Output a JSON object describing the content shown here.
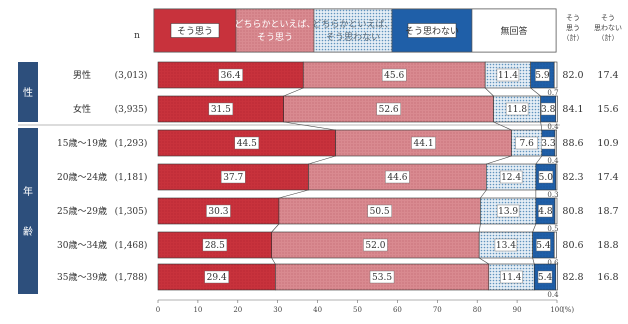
{
  "chart_data": {
    "type": "bar",
    "orientation": "horizontal",
    "stacked": true,
    "n_header": "n",
    "legend": [
      "そう思う",
      "どちらかといえば、そう思う",
      "どちらかといえば、そう思わない",
      "そう思わない",
      "無回答"
    ],
    "summary_headers": [
      "そう思う（計）",
      "そう思わない（計）"
    ],
    "groups": [
      {
        "label": "性",
        "rows": [
          0,
          1
        ]
      },
      {
        "label": "年齢",
        "rows": [
          2,
          3,
          4,
          5,
          6
        ]
      }
    ],
    "categories": [
      "男性",
      "女性",
      "15歳～19歳",
      "20歳～24歳",
      "25歳～29歳",
      "30歳～34歳",
      "35歳～39歳"
    ],
    "n_values": [
      "(3,013)",
      "(3,935)",
      "(1,293)",
      "(1,181)",
      "(1,305)",
      "(1,468)",
      "(1,788)"
    ],
    "series": [
      {
        "name": "そう思う",
        "values": [
          36.4,
          31.5,
          44.5,
          37.7,
          30.3,
          28.5,
          29.4
        ]
      },
      {
        "name": "どちらかといえば、そう思う",
        "values": [
          45.6,
          52.6,
          44.1,
          44.6,
          50.5,
          52.0,
          53.5
        ]
      },
      {
        "name": "どちらかといえば、そう思わない",
        "values": [
          11.4,
          11.8,
          7.6,
          12.4,
          13.9,
          13.4,
          11.4
        ]
      },
      {
        "name": "そう思わない",
        "values": [
          5.9,
          3.8,
          3.3,
          5.0,
          4.8,
          5.4,
          5.4
        ]
      },
      {
        "name": "無回答",
        "values": [
          0.7,
          0.4,
          0.4,
          0.3,
          0.5,
          0.6,
          0.4
        ]
      }
    ],
    "summary_agree": [
      "82.0",
      "84.1",
      "88.6",
      "82.3",
      "80.8",
      "80.6",
      "82.8"
    ],
    "summary_disagree": [
      "17.4",
      "15.6",
      "10.9",
      "17.4",
      "18.7",
      "18.8",
      "16.8"
    ],
    "x_ticks": [
      0,
      10,
      20,
      30,
      40,
      50,
      60,
      70,
      80,
      90,
      100
    ],
    "x_unit": "(%)",
    "xlim": [
      0,
      100
    ],
    "colors": {
      "agree": "#c8323c",
      "somewhat_agree": "#d97f86",
      "somewhat_disagree": "#a9c6dc",
      "disagree": "#1f5fa8",
      "no_answer": "#ffffff",
      "side_label_bg": "#2d4f7c"
    }
  }
}
